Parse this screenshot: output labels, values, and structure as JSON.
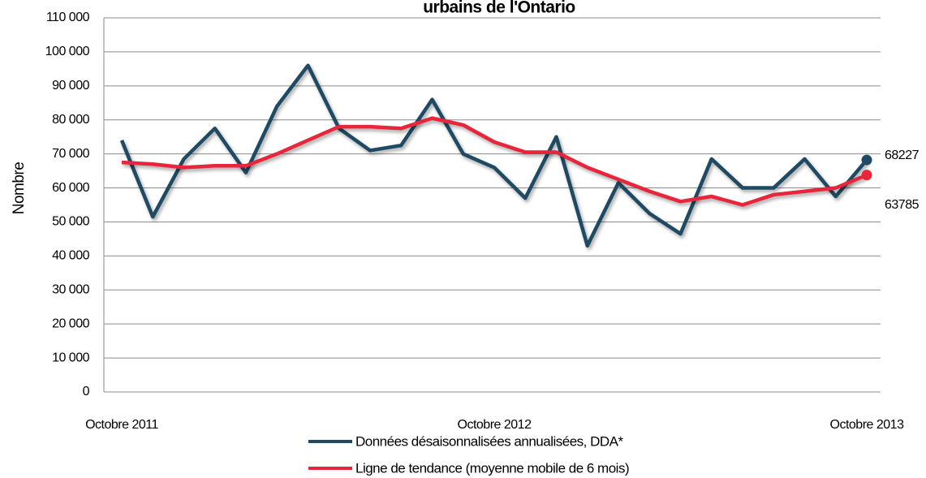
{
  "chart_data": {
    "type": "line",
    "title": "urbains de l'Ontario",
    "ylabel": "Nombre",
    "categories": [
      "Octobre 2011",
      null,
      null,
      null,
      null,
      null,
      null,
      null,
      null,
      null,
      null,
      null,
      "Octobre 2012",
      null,
      null,
      null,
      null,
      null,
      null,
      null,
      null,
      null,
      null,
      null,
      "Octobre 2013"
    ],
    "series": [
      {
        "name": "Données désaisonnalisées annualisées, DDA*",
        "color": "#1e4a63",
        "values": [
          74000,
          51500,
          68500,
          77500,
          64500,
          84000,
          96000,
          77500,
          71000,
          72500,
          86000,
          70000,
          66000,
          57000,
          75000,
          43000,
          61500,
          52500,
          46500,
          68500,
          60000,
          60000,
          68500,
          57500,
          68227
        ]
      },
      {
        "name": "Ligne de tendance (moyenne mobile de 6 mois)",
        "color": "#e8253a",
        "values": [
          67500,
          67000,
          66000,
          66500,
          66500,
          70000,
          74000,
          78000,
          78000,
          77500,
          80500,
          78500,
          73500,
          70500,
          70500,
          66000,
          62500,
          59000,
          56000,
          57500,
          55000,
          58000,
          59000,
          60000,
          63785
        ]
      }
    ],
    "ylim": [
      0,
      110000
    ],
    "yticks": [
      0,
      {
        "value": 10000,
        "label": "10 000"
      },
      {
        "value": 20000,
        "label": "20 000"
      },
      {
        "value": 30000,
        "label": "30 000"
      },
      {
        "value": 40000,
        "label": "40 000"
      },
      {
        "value": 50000,
        "label": "50 000"
      },
      {
        "value": 60000,
        "label": "60 000"
      },
      {
        "value": 70000,
        "label": "70 000"
      },
      {
        "value": 80000,
        "label": "80 000"
      },
      {
        "value": 90000,
        "label": "90 000"
      },
      {
        "value": 100000,
        "label": "100 000"
      },
      {
        "value": 110000,
        "label": "110 000"
      }
    ],
    "grid": true,
    "legend": "bottom"
  }
}
